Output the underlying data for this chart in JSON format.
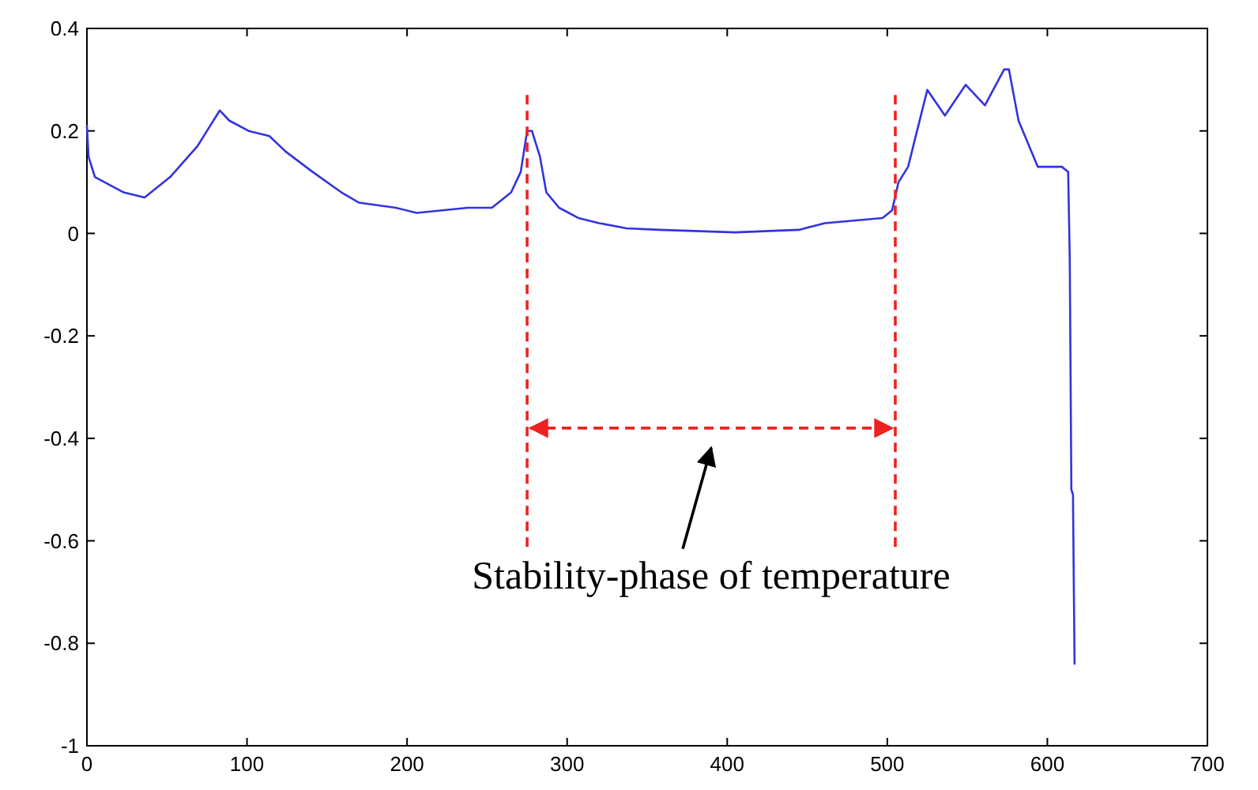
{
  "chart_data": {
    "type": "line",
    "xlim": [
      0,
      700
    ],
    "xticks": [
      0,
      100,
      200,
      300,
      400,
      500,
      600,
      700
    ],
    "ylim": [
      -1,
      0.4
    ],
    "yticks": [
      -1,
      -0.8,
      -0.6,
      -0.4,
      -0.2,
      0,
      0.2,
      0.4
    ],
    "grid": false,
    "line_style": "solid",
    "marker": "none",
    "series": [
      {
        "color": "#3333dd",
        "x": [
          0,
          1,
          5,
          23,
          36,
          52,
          69,
          83,
          89,
          101,
          114,
          124,
          141,
          159,
          170,
          193,
          206,
          238,
          253,
          265,
          271,
          275,
          278,
          283,
          287,
          295,
          307,
          320,
          337,
          357,
          405,
          445,
          461,
          497,
          503,
          507,
          513,
          517,
          525,
          536,
          549,
          561,
          573,
          576,
          582,
          594,
          609,
          613,
          614,
          615,
          616,
          617
        ],
        "values": [
          0.21,
          0.15,
          0.11,
          0.08,
          0.07,
          0.11,
          0.17,
          0.24,
          0.22,
          0.2,
          0.19,
          0.16,
          0.12,
          0.08,
          0.06,
          0.05,
          0.04,
          0.05,
          0.05,
          0.08,
          0.12,
          0.2,
          0.2,
          0.15,
          0.08,
          0.05,
          0.03,
          0.02,
          0.01,
          0.007,
          0.002,
          0.007,
          0.02,
          0.03,
          0.045,
          0.1,
          0.13,
          0.18,
          0.28,
          0.23,
          0.29,
          0.25,
          0.32,
          0.32,
          0.22,
          0.13,
          0.13,
          0.12,
          -0.05,
          -0.5,
          -0.51,
          -0.84
        ]
      }
    ],
    "ref_lines": [
      {
        "axis": "x",
        "value": 275,
        "color": "#ee2222",
        "line_style": "dashed"
      },
      {
        "axis": "x",
        "value": 505,
        "color": "#ee2222",
        "line_style": "dashed"
      }
    ],
    "annotations": [
      "Stability-phase of temperature"
    ]
  }
}
